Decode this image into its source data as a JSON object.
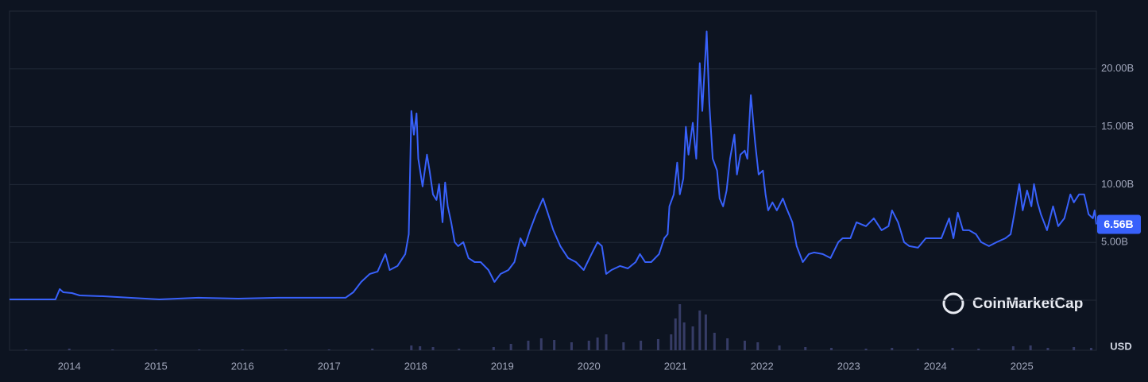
{
  "chart_data": {
    "type": "line",
    "currency": "USD",
    "watermark": "CoinMarketCap",
    "series": [
      {
        "color": "#3861fb",
        "x": [
          2013.31,
          2013.84,
          2013.89,
          2013.93,
          2014.03,
          2014.12,
          2014.39,
          2015.04,
          2015.49,
          2015.95,
          2016.41,
          2016.87,
          2017.19,
          2017.28,
          2017.37,
          2017.47,
          2017.56,
          2017.65,
          2017.7,
          2017.79,
          2017.88,
          2017.92,
          2017.95,
          2017.98,
          2018.01,
          2018.03,
          2018.08,
          2018.13,
          2018.16,
          2018.2,
          2018.24,
          2018.27,
          2018.31,
          2018.34,
          2018.37,
          2018.41,
          2018.45,
          2018.49,
          2018.55,
          2018.61,
          2018.68,
          2018.75,
          2018.84,
          2018.91,
          2018.98,
          2019.07,
          2019.14,
          2019.21,
          2019.26,
          2019.32,
          2019.39,
          2019.47,
          2019.53,
          2019.59,
          2019.67,
          2019.76,
          2019.85,
          2019.94,
          2020.03,
          2020.1,
          2020.15,
          2020.2,
          2020.26,
          2020.36,
          2020.45,
          2020.54,
          2020.59,
          2020.65,
          2020.72,
          2020.81,
          2020.87,
          2020.91,
          2020.93,
          2020.98,
          2021.02,
          2021.05,
          2021.09,
          2021.12,
          2021.15,
          2021.2,
          2021.24,
          2021.28,
          2021.31,
          2021.36,
          2021.39,
          2021.43,
          2021.48,
          2021.51,
          2021.55,
          2021.59,
          2021.63,
          2021.68,
          2021.71,
          2021.75,
          2021.8,
          2021.83,
          2021.87,
          2021.92,
          2021.96,
          2022.01,
          2022.04,
          2022.07,
          2022.12,
          2022.17,
          2022.24,
          2022.28,
          2022.35,
          2022.4,
          2022.47,
          2022.54,
          2022.6,
          2022.7,
          2022.79,
          2022.88,
          2022.93,
          2023.02,
          2023.09,
          2023.2,
          2023.29,
          2023.38,
          2023.46,
          2023.5,
          2023.57,
          2023.64,
          2023.7,
          2023.8,
          2023.89,
          2023.98,
          2024.07,
          2024.16,
          2024.21,
          2024.26,
          2024.32,
          2024.39,
          2024.47,
          2024.53,
          2024.62,
          2024.71,
          2024.81,
          2024.87,
          2024.92,
          2024.97,
          2025.01,
          2025.06,
          2025.11,
          2025.14,
          2025.18,
          2025.22,
          2025.29,
          2025.36,
          2025.42,
          2025.49,
          2025.56,
          2025.6,
          2025.66,
          2025.72,
          2025.77,
          2025.82,
          2025.84,
          2025.86
        ],
        "values": [
          0.07,
          0.07,
          0.96,
          0.69,
          0.62,
          0.41,
          0.34,
          0.07,
          0.21,
          0.14,
          0.21,
          0.21,
          0.21,
          0.69,
          1.58,
          2.27,
          2.48,
          3.99,
          2.61,
          2.96,
          3.99,
          5.71,
          16.37,
          14.31,
          16.16,
          12.24,
          9.84,
          12.59,
          11.21,
          9.15,
          8.67,
          10.04,
          6.74,
          10.18,
          8.12,
          6.74,
          5.02,
          4.68,
          5.02,
          3.65,
          3.3,
          3.3,
          2.61,
          1.58,
          2.27,
          2.61,
          3.3,
          5.36,
          4.68,
          6.05,
          7.43,
          8.8,
          7.43,
          6.05,
          4.68,
          3.65,
          3.3,
          2.61,
          3.99,
          5.02,
          4.68,
          2.27,
          2.61,
          2.96,
          2.75,
          3.3,
          3.99,
          3.3,
          3.3,
          3.99,
          5.36,
          5.71,
          8.12,
          9.15,
          11.9,
          9.15,
          10.52,
          15.0,
          12.59,
          15.34,
          12.24,
          20.5,
          16.37,
          23.25,
          17.06,
          12.24,
          11.21,
          8.8,
          8.12,
          9.49,
          12.24,
          14.31,
          10.87,
          12.59,
          12.93,
          12.24,
          17.74,
          13.62,
          10.87,
          11.21,
          9.15,
          7.77,
          8.46,
          7.77,
          8.8,
          7.98,
          6.74,
          4.68,
          3.3,
          3.99,
          4.13,
          3.99,
          3.65,
          5.02,
          5.36,
          5.36,
          6.74,
          6.4,
          7.08,
          6.05,
          6.4,
          7.77,
          6.74,
          5.02,
          4.68,
          4.54,
          5.36,
          5.36,
          5.36,
          7.08,
          5.36,
          7.57,
          6.05,
          6.05,
          5.71,
          5.02,
          4.68,
          5.02,
          5.36,
          5.71,
          7.77,
          10.04,
          7.77,
          9.49,
          8.12,
          10.04,
          8.46,
          7.43,
          6.05,
          8.12,
          6.4,
          7.08,
          9.15,
          8.46,
          9.15,
          9.15,
          7.43,
          7.08,
          7.77,
          6.56
        ]
      }
    ],
    "volume": {
      "color": "#363c66",
      "x": [
        2013.5,
        2014.0,
        2014.5,
        2015.0,
        2015.5,
        2016.0,
        2016.5,
        2017.0,
        2017.5,
        2017.95,
        2018.05,
        2018.2,
        2018.5,
        2018.9,
        2019.1,
        2019.3,
        2019.45,
        2019.6,
        2019.8,
        2020.0,
        2020.1,
        2020.2,
        2020.4,
        2020.6,
        2020.8,
        2020.95,
        2021.0,
        2021.05,
        2021.1,
        2021.2,
        2021.28,
        2021.35,
        2021.45,
        2021.6,
        2021.8,
        2021.95,
        2022.2,
        2022.5,
        2022.8,
        2023.2,
        2023.5,
        2023.8,
        2024.2,
        2024.5,
        2024.9,
        2025.1,
        2025.3,
        2025.6,
        2025.8
      ],
      "values": [
        1,
        2,
        1,
        1,
        1,
        1,
        1,
        1,
        2,
        6,
        5,
        4,
        2,
        4,
        8,
        12,
        15,
        13,
        10,
        12,
        16,
        20,
        10,
        12,
        14,
        20,
        40,
        58,
        35,
        30,
        50,
        45,
        22,
        15,
        12,
        10,
        6,
        4,
        3,
        2,
        3,
        2,
        3,
        2,
        5,
        6,
        3,
        4,
        3
      ],
      "y2lim": [
        0,
        63
      ]
    },
    "last_value": {
      "value": 6.56,
      "label": "6.56B"
    },
    "xlim": [
      2013.31,
      2025.86
    ],
    "xticks": [
      2014,
      2015,
      2016,
      2017,
      2018,
      2019,
      2020,
      2021,
      2022,
      2023,
      2024,
      2025
    ],
    "ylim": [
      0,
      25
    ],
    "yticks": [
      {
        "value": 5,
        "label": "5.00B"
      },
      {
        "value": 10,
        "label": "10.00B"
      },
      {
        "value": 15,
        "label": "15.00B"
      },
      {
        "value": 20,
        "label": "20.00B"
      }
    ],
    "grid": true
  }
}
